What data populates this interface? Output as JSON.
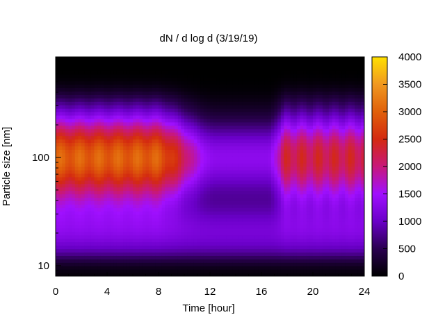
{
  "chart_data": {
    "type": "heatmap",
    "title": "dN / d log d (3/19/19)",
    "xlabel": "Time [hour]",
    "ylabel": "Particle size [nm]",
    "x_range": [
      0,
      24
    ],
    "x_ticks": [
      "0",
      "4",
      "8",
      "12",
      "16",
      "20",
      "24"
    ],
    "y_scale": "log",
    "y_range": [
      8,
      850
    ],
    "y_ticks": [
      "10",
      "100"
    ],
    "colorbar": {
      "range": [
        0,
        4000
      ],
      "ticks": [
        "0",
        "500",
        "1000",
        "1500",
        "2000",
        "2500",
        "3000",
        "3500",
        "4000"
      ],
      "palette": [
        "#000000",
        "#2a0050",
        "#6a00c8",
        "#a010ff",
        "#c8187a",
        "#d42a10",
        "#e0600a",
        "#f09820",
        "#ffe000"
      ]
    },
    "grid": false,
    "colormap": "black-purple-red-orange-yellow",
    "features": {
      "accumulation_mode_peak_nm": 100,
      "morning_max_value": 3000,
      "evening_max_value": 2400,
      "midday_background_value": 1200
    }
  }
}
